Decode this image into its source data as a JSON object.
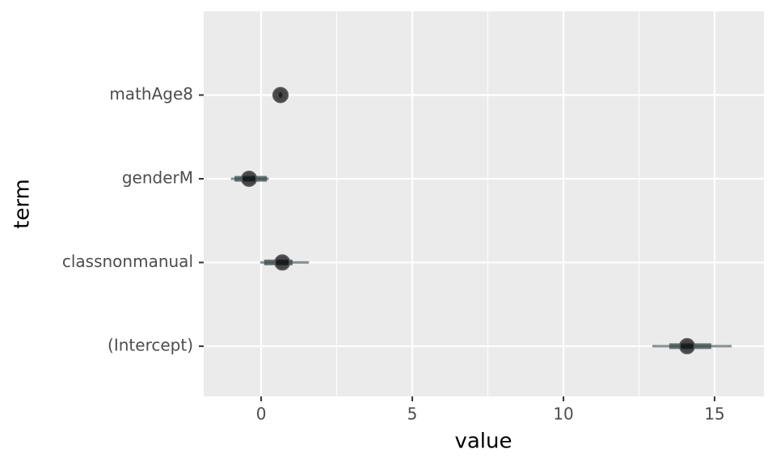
{
  "chart_data": {
    "type": "pointinterval",
    "x_label": "value",
    "y_label": "term",
    "categories": [
      "mathAge8",
      "genderM",
      "classnonmanual",
      "(Intercept)"
    ],
    "values": [
      0.64,
      -0.4,
      0.7,
      14.09
    ],
    "inner_low": [
      0.6,
      -0.88,
      0.1,
      13.5
    ],
    "inner_high": [
      0.68,
      0.19,
      1.04,
      14.89
    ],
    "outer_low": [
      0.57,
      -1.0,
      -0.03,
      12.94
    ],
    "outer_high": [
      0.71,
      0.25,
      1.58,
      15.56
    ],
    "color": "#000000",
    "interval_color": "#3a4a4a",
    "xlim": [
      -1.9,
      16.63
    ],
    "xticks": [
      0,
      5,
      10,
      15
    ],
    "minor_xticks": [
      2.5,
      7.5,
      12.5
    ],
    "grid": true
  }
}
